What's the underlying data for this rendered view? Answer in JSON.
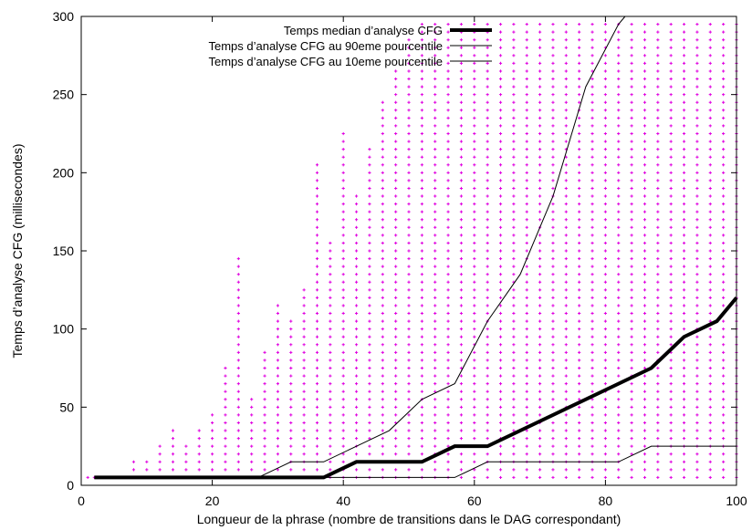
{
  "chart_data": {
    "type": "line",
    "xlabel": "Longueur de la phrase (nombre de transitions dans le DAG correspondant)",
    "ylabel": "Temps d’analyse CFG (millisecondes)",
    "xlim": [
      0,
      100
    ],
    "ylim": [
      0,
      300
    ],
    "x_ticks": [
      "0",
      "20",
      "40",
      "60",
      "80",
      "100"
    ],
    "y_ticks": [
      "0",
      "50",
      "100",
      "150",
      "200",
      "250",
      "300"
    ],
    "grid": false,
    "legend_position": "top-right",
    "series": [
      {
        "name": "Temps median d’analyse CFG",
        "style": "thick",
        "color": "#000000",
        "x": [
          2,
          37,
          42,
          52,
          57,
          62,
          87,
          92,
          97,
          100
        ],
        "y": [
          5,
          5,
          15,
          15,
          25,
          25,
          75,
          95,
          105,
          120
        ]
      },
      {
        "name": "Temps d’analyse CFG au 90eme pourcentile",
        "style": "thin",
        "color": "#000000",
        "x": [
          27,
          32,
          37,
          42,
          47,
          52,
          57,
          62,
          67,
          72,
          77,
          82,
          83
        ],
        "y": [
          5,
          15,
          15,
          25,
          35,
          55,
          65,
          105,
          135,
          185,
          255,
          295,
          300
        ]
      },
      {
        "name": "Temps d’analyse CFG au 10eme pourcentile",
        "style": "thin",
        "color": "#000000",
        "x": [
          2,
          57,
          62,
          82,
          87,
          100
        ],
        "y": [
          5,
          5,
          15,
          15,
          25,
          25
        ]
      }
    ],
    "scatter": {
      "color": "#e000e0",
      "marker": "+",
      "y_step": 5,
      "x_min_point": [
        1,
        5
      ],
      "columns_max_y": [
        [
          2,
          5
        ],
        [
          4,
          5
        ],
        [
          6,
          5
        ],
        [
          8,
          15
        ],
        [
          10,
          15
        ],
        [
          12,
          25
        ],
        [
          14,
          35
        ],
        [
          16,
          25
        ],
        [
          18,
          35
        ],
        [
          20,
          45
        ],
        [
          22,
          75
        ],
        [
          24,
          145
        ],
        [
          26,
          55
        ],
        [
          28,
          85
        ],
        [
          30,
          115
        ],
        [
          32,
          105
        ],
        [
          34,
          125
        ],
        [
          36,
          205
        ],
        [
          38,
          155
        ],
        [
          40,
          225
        ],
        [
          42,
          185
        ],
        [
          44,
          215
        ],
        [
          46,
          245
        ],
        [
          48,
          265
        ],
        [
          50,
          285
        ],
        [
          52,
          300
        ],
        [
          54,
          300
        ],
        [
          56,
          300
        ],
        [
          58,
          300
        ],
        [
          60,
          300
        ],
        [
          62,
          300
        ],
        [
          64,
          300
        ],
        [
          66,
          300
        ],
        [
          68,
          300
        ],
        [
          70,
          300
        ],
        [
          72,
          300
        ],
        [
          74,
          300
        ],
        [
          76,
          300
        ],
        [
          78,
          300
        ],
        [
          80,
          300
        ],
        [
          82,
          300
        ],
        [
          84,
          300
        ],
        [
          86,
          300
        ],
        [
          88,
          300
        ],
        [
          90,
          300
        ],
        [
          92,
          300
        ],
        [
          94,
          300
        ],
        [
          96,
          300
        ],
        [
          98,
          300
        ],
        [
          100,
          300
        ]
      ]
    }
  }
}
